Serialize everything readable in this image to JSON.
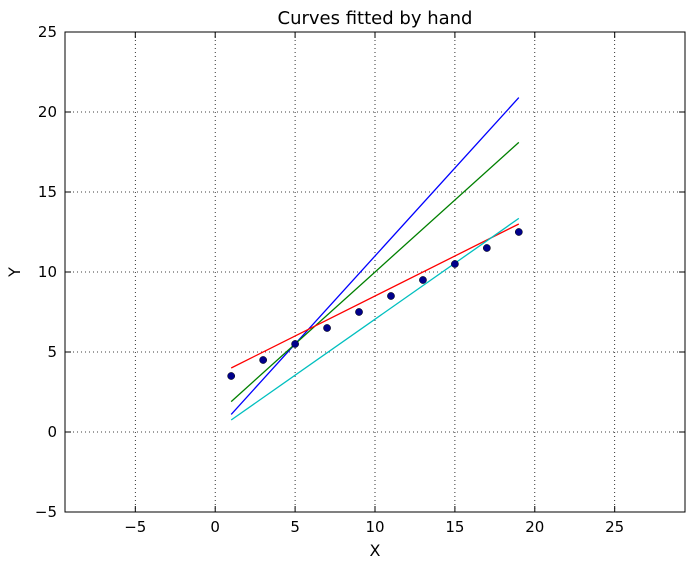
{
  "chart_data": {
    "type": "line",
    "title": "Curves fitted by hand",
    "xlabel": "X",
    "ylabel": "Y",
    "xlim": [
      -9.4,
      29.4
    ],
    "ylim": [
      -5,
      25
    ],
    "grid": true,
    "xticks": [
      -5,
      0,
      5,
      10,
      15,
      20,
      25
    ],
    "xtick_labels": [
      "−5",
      "0",
      "5",
      "10",
      "15",
      "20",
      "25"
    ],
    "yticks": [
      -5,
      0,
      5,
      10,
      15,
      20,
      25
    ],
    "ytick_labels": [
      "−5",
      "0",
      "5",
      "10",
      "15",
      "20",
      "25"
    ],
    "scatter": {
      "color": "#00008b",
      "x": [
        1,
        3,
        5,
        7,
        9,
        11,
        13,
        15,
        17,
        19
      ],
      "y": [
        3.5,
        4.5,
        5.5,
        6.5,
        7.5,
        8.5,
        9.5,
        10.5,
        11.5,
        12.5
      ]
    },
    "series": [
      {
        "color": "#0000ff",
        "x": [
          1,
          19
        ],
        "y": [
          1.1,
          20.9
        ]
      },
      {
        "color": "#008000",
        "x": [
          1,
          19
        ],
        "y": [
          1.9,
          18.1
        ]
      },
      {
        "color": "#ff0000",
        "x": [
          1,
          19
        ],
        "y": [
          4.0,
          13.0
        ]
      },
      {
        "color": "#00bfbf",
        "x": [
          1,
          19
        ],
        "y": [
          0.75,
          13.35
        ]
      }
    ]
  }
}
